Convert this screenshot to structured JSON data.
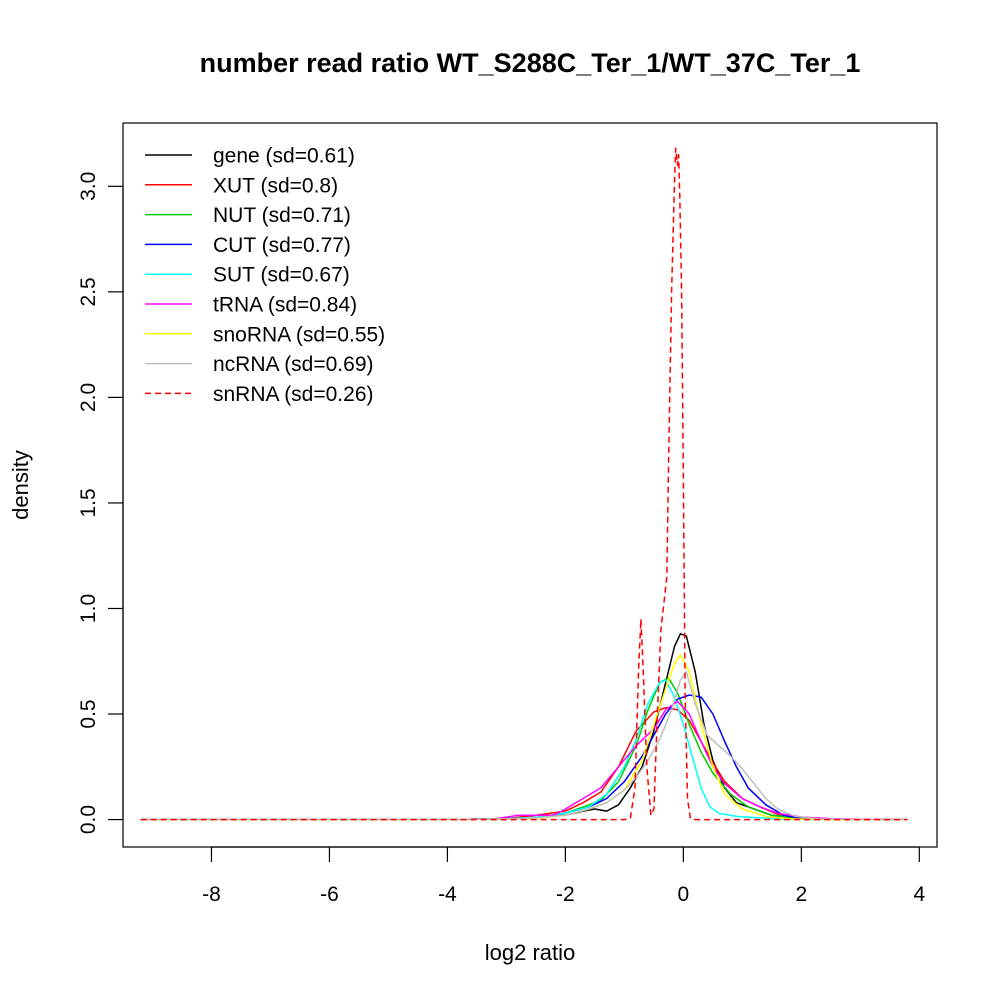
{
  "chart_data": {
    "type": "line",
    "title": "number read ratio WT_S288C_Ter_1/WT_37C_Ter_1",
    "xlabel": "log2 ratio",
    "ylabel": "density",
    "xlim": [
      -9.5,
      4.3
    ],
    "ylim": [
      -0.13,
      3.3
    ],
    "xticks": [
      -8,
      -6,
      -4,
      -2,
      0,
      2,
      4
    ],
    "xtick_labels": [
      "-8",
      "-6",
      "-4",
      "-2",
      "0",
      "2",
      "4"
    ],
    "yticks": [
      0.0,
      0.5,
      1.0,
      1.5,
      2.0,
      2.5,
      3.0
    ],
    "ytick_labels": [
      "0.0",
      "0.5",
      "1.0",
      "1.5",
      "2.0",
      "2.5",
      "3.0"
    ],
    "legend_position": "top-left",
    "series": [
      {
        "name": "gene (sd=0.61)",
        "color": "#000000",
        "dash": false,
        "points": [
          [
            -9.2,
            0
          ],
          [
            -4,
            0
          ],
          [
            -3,
            0.003
          ],
          [
            -2.5,
            0.01
          ],
          [
            -2,
            0.02
          ],
          [
            -1.7,
            0.04
          ],
          [
            -1.5,
            0.05
          ],
          [
            -1.3,
            0.04
          ],
          [
            -1.1,
            0.07
          ],
          [
            -0.9,
            0.15
          ],
          [
            -0.7,
            0.25
          ],
          [
            -0.5,
            0.42
          ],
          [
            -0.3,
            0.65
          ],
          [
            -0.15,
            0.82
          ],
          [
            -0.05,
            0.88
          ],
          [
            0.05,
            0.87
          ],
          [
            0.2,
            0.7
          ],
          [
            0.35,
            0.45
          ],
          [
            0.5,
            0.28
          ],
          [
            0.7,
            0.15
          ],
          [
            0.9,
            0.08
          ],
          [
            1.2,
            0.05
          ],
          [
            1.5,
            0.02
          ],
          [
            2,
            0.005
          ],
          [
            2.5,
            0.001
          ],
          [
            3.8,
            0
          ]
        ]
      },
      {
        "name": "XUT (sd=0.8)",
        "color": "#ff0000",
        "dash": false,
        "points": [
          [
            -9.2,
            0
          ],
          [
            -4,
            0
          ],
          [
            -3,
            0.005
          ],
          [
            -2.5,
            0.02
          ],
          [
            -2,
            0.04
          ],
          [
            -1.7,
            0.08
          ],
          [
            -1.4,
            0.13
          ],
          [
            -1.1,
            0.25
          ],
          [
            -0.8,
            0.42
          ],
          [
            -0.5,
            0.51
          ],
          [
            -0.3,
            0.53
          ],
          [
            -0.1,
            0.52
          ],
          [
            0.1,
            0.47
          ],
          [
            0.3,
            0.37
          ],
          [
            0.5,
            0.27
          ],
          [
            0.7,
            0.18
          ],
          [
            1.0,
            0.1
          ],
          [
            1.3,
            0.06
          ],
          [
            1.6,
            0.025
          ],
          [
            2,
            0.008
          ],
          [
            2.5,
            0.002
          ],
          [
            3.8,
            0
          ]
        ]
      },
      {
        "name": "NUT (sd=0.71)",
        "color": "#00cc00",
        "dash": false,
        "points": [
          [
            -9.2,
            0
          ],
          [
            -4,
            0
          ],
          [
            -3,
            0.004
          ],
          [
            -2.5,
            0.01
          ],
          [
            -2,
            0.03
          ],
          [
            -1.7,
            0.06
          ],
          [
            -1.4,
            0.09
          ],
          [
            -1.1,
            0.18
          ],
          [
            -0.8,
            0.35
          ],
          [
            -0.6,
            0.52
          ],
          [
            -0.4,
            0.65
          ],
          [
            -0.25,
            0.67
          ],
          [
            -0.1,
            0.6
          ],
          [
            0.1,
            0.45
          ],
          [
            0.3,
            0.32
          ],
          [
            0.5,
            0.22
          ],
          [
            0.8,
            0.12
          ],
          [
            1.1,
            0.06
          ],
          [
            1.5,
            0.02
          ],
          [
            2,
            0.005
          ],
          [
            2.5,
            0.001
          ],
          [
            3.8,
            0
          ]
        ]
      },
      {
        "name": "CUT (sd=0.77)",
        "color": "#0000ff",
        "dash": false,
        "points": [
          [
            -9.2,
            0
          ],
          [
            -4,
            0
          ],
          [
            -3,
            0.005
          ],
          [
            -2.5,
            0.01
          ],
          [
            -2,
            0.03
          ],
          [
            -1.6,
            0.06
          ],
          [
            -1.3,
            0.1
          ],
          [
            -1.0,
            0.18
          ],
          [
            -0.7,
            0.3
          ],
          [
            -0.5,
            0.4
          ],
          [
            -0.3,
            0.5
          ],
          [
            -0.1,
            0.57
          ],
          [
            0.1,
            0.59
          ],
          [
            0.3,
            0.58
          ],
          [
            0.5,
            0.5
          ],
          [
            0.7,
            0.37
          ],
          [
            0.9,
            0.25
          ],
          [
            1.1,
            0.15
          ],
          [
            1.4,
            0.07
          ],
          [
            1.7,
            0.02
          ],
          [
            2,
            0.005
          ],
          [
            2.5,
            0.001
          ],
          [
            3.8,
            0
          ]
        ]
      },
      {
        "name": "SUT (sd=0.67)",
        "color": "#00ffff",
        "dash": false,
        "points": [
          [
            -9.2,
            0
          ],
          [
            -4,
            0
          ],
          [
            -3,
            0.004
          ],
          [
            -2.5,
            0.01
          ],
          [
            -2,
            0.03
          ],
          [
            -1.6,
            0.06
          ],
          [
            -1.3,
            0.12
          ],
          [
            -1.0,
            0.25
          ],
          [
            -0.8,
            0.38
          ],
          [
            -0.6,
            0.55
          ],
          [
            -0.4,
            0.65
          ],
          [
            -0.3,
            0.66
          ],
          [
            -0.15,
            0.58
          ],
          [
            0,
            0.45
          ],
          [
            0.15,
            0.3
          ],
          [
            0.3,
            0.15
          ],
          [
            0.45,
            0.06
          ],
          [
            0.6,
            0.03
          ],
          [
            0.9,
            0.015
          ],
          [
            1.3,
            0.008
          ],
          [
            1.7,
            0.002
          ],
          [
            2.5,
            0
          ],
          [
            3.8,
            0
          ]
        ]
      },
      {
        "name": "tRNA (sd=0.84)",
        "color": "#ff00ff",
        "dash": false,
        "points": [
          [
            -9.2,
            0
          ],
          [
            -4,
            0
          ],
          [
            -3.2,
            0.003
          ],
          [
            -2.8,
            0.02
          ],
          [
            -2.5,
            0.02
          ],
          [
            -2.2,
            0.02
          ],
          [
            -2,
            0.05
          ],
          [
            -1.7,
            0.1
          ],
          [
            -1.4,
            0.15
          ],
          [
            -1.1,
            0.25
          ],
          [
            -0.8,
            0.35
          ],
          [
            -0.5,
            0.43
          ],
          [
            -0.3,
            0.52
          ],
          [
            -0.1,
            0.56
          ],
          [
            0.1,
            0.5
          ],
          [
            0.3,
            0.37
          ],
          [
            0.5,
            0.25
          ],
          [
            0.7,
            0.17
          ],
          [
            1.0,
            0.1
          ],
          [
            1.3,
            0.06
          ],
          [
            1.6,
            0.03
          ],
          [
            2,
            0.012
          ],
          [
            2.5,
            0.004
          ],
          [
            3,
            0.001
          ],
          [
            3.8,
            0
          ]
        ]
      },
      {
        "name": "snoRNA (sd=0.55)",
        "color": "#ffff00",
        "dash": false,
        "points": [
          [
            -9.2,
            0
          ],
          [
            -4,
            0
          ],
          [
            -3,
            0.003
          ],
          [
            -2.5,
            0.005
          ],
          [
            -2,
            0.02
          ],
          [
            -1.6,
            0.05
          ],
          [
            -1.3,
            0.08
          ],
          [
            -1.0,
            0.14
          ],
          [
            -0.7,
            0.28
          ],
          [
            -0.5,
            0.45
          ],
          [
            -0.3,
            0.62
          ],
          [
            -0.15,
            0.74
          ],
          [
            -0.05,
            0.78
          ],
          [
            0.1,
            0.7
          ],
          [
            0.3,
            0.45
          ],
          [
            0.5,
            0.25
          ],
          [
            0.7,
            0.12
          ],
          [
            1.0,
            0.05
          ],
          [
            1.4,
            0.015
          ],
          [
            1.8,
            0.003
          ],
          [
            2.5,
            0
          ],
          [
            3.8,
            0
          ]
        ]
      },
      {
        "name": "ncRNA (sd=0.69)",
        "color": "#bebebe",
        "dash": false,
        "points": [
          [
            -9.2,
            0
          ],
          [
            -4,
            0
          ],
          [
            -3,
            0.003
          ],
          [
            -2.5,
            0.008
          ],
          [
            -2,
            0.02
          ],
          [
            -1.6,
            0.05
          ],
          [
            -1.3,
            0.08
          ],
          [
            -1.0,
            0.14
          ],
          [
            -0.8,
            0.2
          ],
          [
            -0.6,
            0.28
          ],
          [
            -0.4,
            0.38
          ],
          [
            -0.2,
            0.52
          ],
          [
            -0.05,
            0.66
          ],
          [
            0.05,
            0.7
          ],
          [
            0.2,
            0.55
          ],
          [
            0.4,
            0.4
          ],
          [
            0.6,
            0.35
          ],
          [
            0.8,
            0.3
          ],
          [
            1.0,
            0.24
          ],
          [
            1.2,
            0.17
          ],
          [
            1.4,
            0.1
          ],
          [
            1.6,
            0.05
          ],
          [
            1.9,
            0.015
          ],
          [
            2.3,
            0.003
          ],
          [
            3,
            0
          ],
          [
            3.8,
            0
          ]
        ]
      },
      {
        "name": "snRNA (sd=0.26)",
        "color": "#ff0000",
        "dash": true,
        "points": [
          [
            -9.2,
            0
          ],
          [
            -1,
            0
          ],
          [
            -0.9,
            0.005
          ],
          [
            -0.82,
            0.15
          ],
          [
            -0.76,
            0.7
          ],
          [
            -0.72,
            0.95
          ],
          [
            -0.68,
            0.7
          ],
          [
            -0.62,
            0.25
          ],
          [
            -0.55,
            0.02
          ],
          [
            -0.5,
            0.05
          ],
          [
            -0.44,
            0.5
          ],
          [
            -0.38,
            0.9
          ],
          [
            -0.32,
            1.05
          ],
          [
            -0.28,
            1.15
          ],
          [
            -0.25,
            1.7
          ],
          [
            -0.2,
            2.5
          ],
          [
            -0.15,
            3.02
          ],
          [
            -0.13,
            3.18
          ],
          [
            -0.1,
            3.1
          ],
          [
            -0.08,
            3.15
          ],
          [
            -0.06,
            2.95
          ],
          [
            -0.03,
            2.5
          ],
          [
            0,
            1.6
          ],
          [
            0.03,
            0.6
          ],
          [
            0.07,
            0.1
          ],
          [
            0.12,
            0.005
          ],
          [
            0.2,
            0
          ],
          [
            3.8,
            0
          ]
        ]
      }
    ]
  }
}
